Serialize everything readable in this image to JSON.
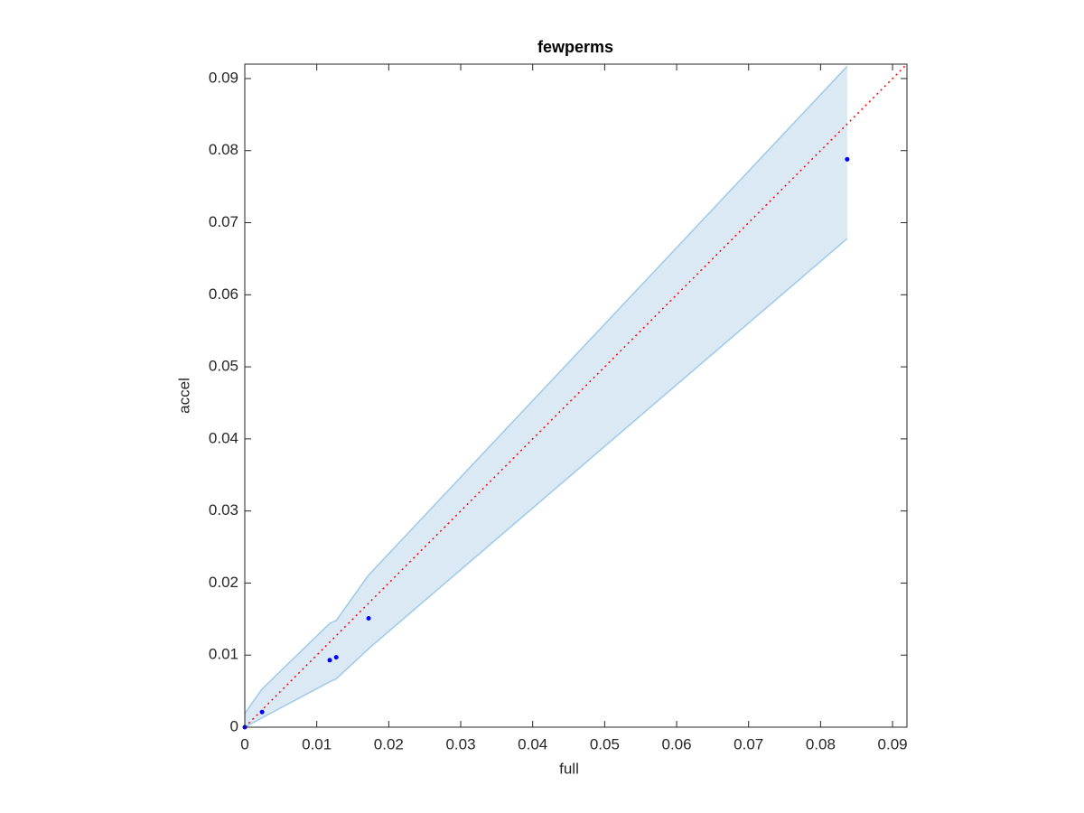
{
  "chart_data": {
    "type": "scatter",
    "title": "fewperms",
    "x_label": "full",
    "y_label": "accel",
    "xlim": [
      0,
      0.092
    ],
    "ylim": [
      0,
      0.092
    ],
    "xticks": [
      0,
      0.01,
      0.02,
      0.03,
      0.04,
      0.05,
      0.06,
      0.07,
      0.08,
      0.09
    ],
    "yticks": [
      0,
      0.01,
      0.02,
      0.03,
      0.04,
      0.05,
      0.06,
      0.07,
      0.08,
      0.09
    ],
    "band": {
      "color": "#9ccae8",
      "fill": "#dbe9f5",
      "x": [
        0,
        0.0024,
        0.0118,
        0.0127,
        0.0172,
        0.0837
      ],
      "upper": [
        0.0019,
        0.0053,
        0.0144,
        0.0148,
        0.0211,
        0.0917
      ],
      "lower": [
        0,
        0.0013,
        0.0063,
        0.0067,
        0.0109,
        0.0678
      ]
    },
    "reference_line": {
      "color": "#ff0000",
      "style": "dotted",
      "x": [
        0,
        0.092
      ],
      "y": [
        0,
        0.092
      ]
    },
    "series": [
      {
        "color": "#0000ff",
        "x": [
          0,
          0.0024,
          0.0118,
          0.0127,
          0.0172,
          0.0837
        ],
        "values": [
          0,
          0.0021,
          0.0093,
          0.0097,
          0.0151,
          0.0788
        ]
      }
    ]
  }
}
